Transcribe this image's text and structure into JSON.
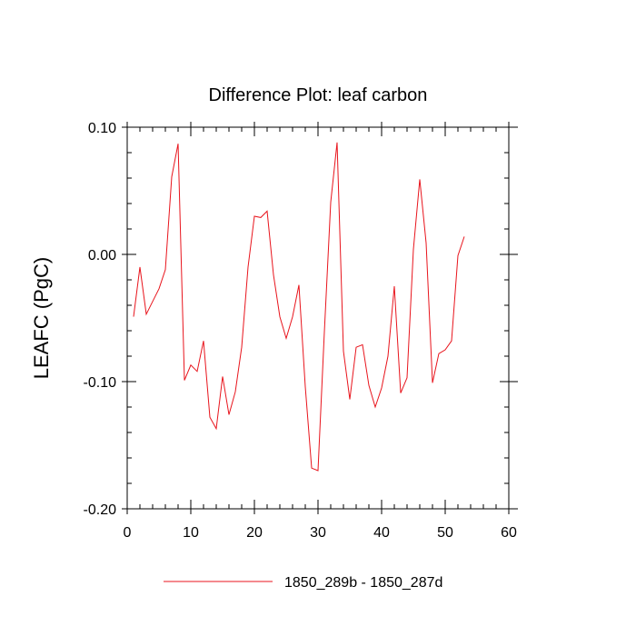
{
  "chart_data": {
    "type": "line",
    "title": "Difference Plot: leaf carbon",
    "xlabel": "",
    "ylabel": "LEAFC  (PgC)",
    "xlim": [
      0,
      60
    ],
    "ylim": [
      -0.2,
      0.1
    ],
    "x_ticks": [
      0,
      10,
      20,
      30,
      40,
      50,
      60
    ],
    "x_tick_labels": [
      "0",
      "10",
      "20",
      "30",
      "40",
      "50",
      "60"
    ],
    "y_ticks": [
      0.1,
      0.0,
      -0.1,
      -0.2
    ],
    "y_tick_labels": [
      "0.10",
      "0.00",
      "-0.10",
      "-0.20"
    ],
    "grid": false,
    "legend_position": "bottom",
    "series": [
      {
        "name": "1850_289b - 1850_287d",
        "color": "#e8141c",
        "x": [
          1,
          2,
          3,
          4,
          5,
          6,
          7,
          8,
          9,
          10,
          11,
          12,
          13,
          14,
          15,
          16,
          17,
          18,
          19,
          20,
          21,
          22,
          23,
          24,
          25,
          26,
          27,
          28,
          29,
          30,
          31,
          32,
          33,
          34,
          35,
          36,
          37,
          38,
          39,
          40,
          41,
          42,
          43,
          44,
          45,
          46,
          47,
          48,
          49,
          50,
          51,
          52,
          53
        ],
        "y": [
          -0.049,
          -0.01,
          -0.047,
          -0.037,
          -0.027,
          -0.012,
          0.061,
          0.087,
          -0.099,
          -0.087,
          -0.092,
          -0.068,
          -0.128,
          -0.137,
          -0.096,
          -0.126,
          -0.108,
          -0.073,
          -0.01,
          0.03,
          0.029,
          0.034,
          -0.016,
          -0.049,
          -0.066,
          -0.049,
          -0.024,
          -0.104,
          -0.168,
          -0.17,
          -0.061,
          0.041,
          0.088,
          -0.076,
          -0.114,
          -0.073,
          -0.071,
          -0.103,
          -0.12,
          -0.105,
          -0.08,
          -0.025,
          -0.109,
          -0.097,
          0.004,
          0.059,
          0.009,
          -0.101,
          -0.078,
          -0.075,
          -0.068,
          -0.001,
          0.014
        ]
      }
    ]
  }
}
